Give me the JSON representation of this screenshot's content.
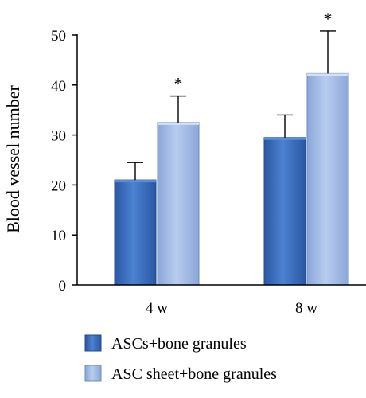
{
  "chart_data": {
    "type": "bar",
    "title": "",
    "xlabel": "",
    "ylabel": "Blood vessel number",
    "ylim": [
      0,
      50
    ],
    "yticks": [
      "0",
      "10",
      "20",
      "30",
      "40",
      "50"
    ],
    "categories": [
      "4 w",
      "8 w"
    ],
    "series": [
      {
        "name": "ASCs+bone granules",
        "values": [
          21,
          29.5
        ],
        "error": [
          3.5,
          4.5
        ],
        "annotations": [
          "",
          ""
        ],
        "color": "#3a6fc0"
      },
      {
        "name": "ASC sheet+bone granules",
        "values": [
          32.5,
          42.3
        ],
        "error": [
          5.3,
          8.5
        ],
        "annotations": [
          "*",
          "*"
        ],
        "color": "#9fb7e2"
      }
    ],
    "grid": false,
    "legend_placement": "bottom"
  }
}
